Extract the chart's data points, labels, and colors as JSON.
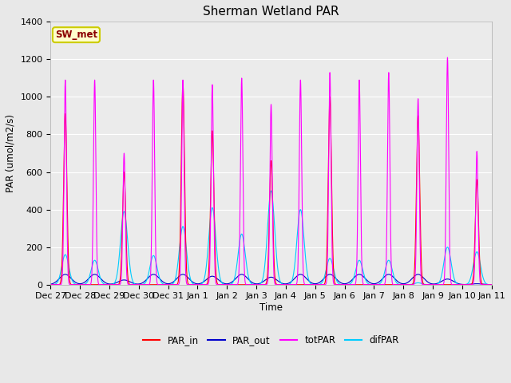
{
  "title": "Sherman Wetland PAR",
  "ylabel": "PAR (umol/m2/s)",
  "xlabel": "Time",
  "ylim": [
    0,
    1400
  ],
  "fig_facecolor": "#e8e8e8",
  "ax_facecolor": "#ebebeb",
  "annotation_text": "SW_met",
  "annotation_color": "#8B0000",
  "annotation_bg": "#ffffcc",
  "annotation_border": "#cccc00",
  "colors": {
    "PAR_in": "#ff0000",
    "PAR_out": "#0000cc",
    "totPAR": "#ff00ff",
    "difPAR": "#00ccff"
  },
  "x_tick_labels": [
    "Dec 27",
    "Dec 28",
    "Dec 29",
    "Dec 30",
    "Dec 31",
    "Jan 1",
    "Jan 2",
    "Jan 3",
    "Jan 4",
    "Jan 5",
    "Jan 6",
    "Jan 7",
    "Jan 8",
    "Jan 9",
    "Jan 10",
    "Jan 11"
  ],
  "n_days": 15,
  "day_peaks": {
    "PAR_in": [
      910,
      0,
      600,
      0,
      1075,
      820,
      0,
      660,
      0,
      1000,
      0,
      0,
      900,
      0,
      560
    ],
    "PAR_out": [
      55,
      55,
      25,
      55,
      55,
      45,
      55,
      40,
      55,
      55,
      55,
      55,
      55,
      30,
      5
    ],
    "totPAR": [
      1090,
      1090,
      700,
      1090,
      1090,
      1065,
      1100,
      960,
      1090,
      1130,
      1090,
      1130,
      990,
      1210,
      710
    ],
    "difPAR": [
      160,
      130,
      390,
      155,
      310,
      410,
      270,
      500,
      400,
      140,
      130,
      130,
      10,
      200,
      175
    ]
  },
  "widths": {
    "PAR_in": 0.055,
    "PAR_out": 0.2,
    "totPAR": 0.04,
    "difPAR": 0.12
  }
}
